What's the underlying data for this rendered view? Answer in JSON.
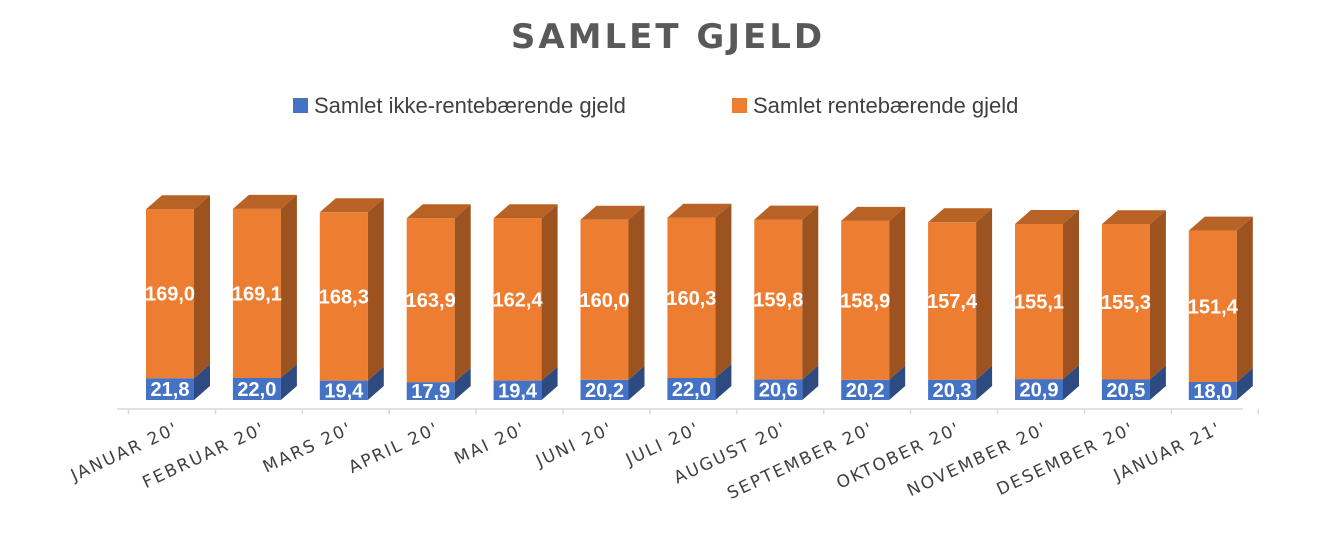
{
  "chart_data": {
    "type": "bar",
    "stacked": true,
    "three_d": true,
    "title": "SAMLET GJELD",
    "legend_position": "top",
    "categories": [
      "JANUAR 20'",
      "FEBRUAR 20'",
      "MARS 20'",
      "APRIL 20'",
      "MAI 20'",
      "JUNI 20'",
      "JULI 20'",
      "AUGUST 20'",
      "SEPTEMBER 20'",
      "OKTOBER 20'",
      "NOVEMBER 20'",
      "DESEMBER 20'",
      "JANUAR 21'"
    ],
    "series": [
      {
        "name": "Samlet ikke-rentebærende gjeld",
        "color": "#4472C4",
        "label_values": [
          "21,8",
          "22,0",
          "19,4",
          "17,9",
          "19,4",
          "20,2",
          "22,0",
          "20,6",
          "20,2",
          "20,3",
          "20,9",
          "20,5",
          "18,0"
        ],
        "values": [
          21.8,
          22.0,
          19.4,
          17.9,
          19.4,
          20.2,
          22.0,
          20.6,
          20.2,
          20.3,
          20.9,
          20.5,
          18.0
        ]
      },
      {
        "name": "Samlet rentebærende gjeld",
        "color": "#ED7D31",
        "label_values": [
          "169,0",
          "169,1",
          "168,3",
          "163,9",
          "162,4",
          "160,0",
          "160,3",
          "159,8",
          "158,9",
          "157,4",
          "155,1",
          "155,3",
          "151,4"
        ],
        "values": [
          169.0,
          169.1,
          168.3,
          163.9,
          162.4,
          160.0,
          160.3,
          159.8,
          158.9,
          157.4,
          155.1,
          155.3,
          151.4
        ]
      }
    ],
    "grid": false,
    "ylim": [
      0,
      195
    ]
  }
}
